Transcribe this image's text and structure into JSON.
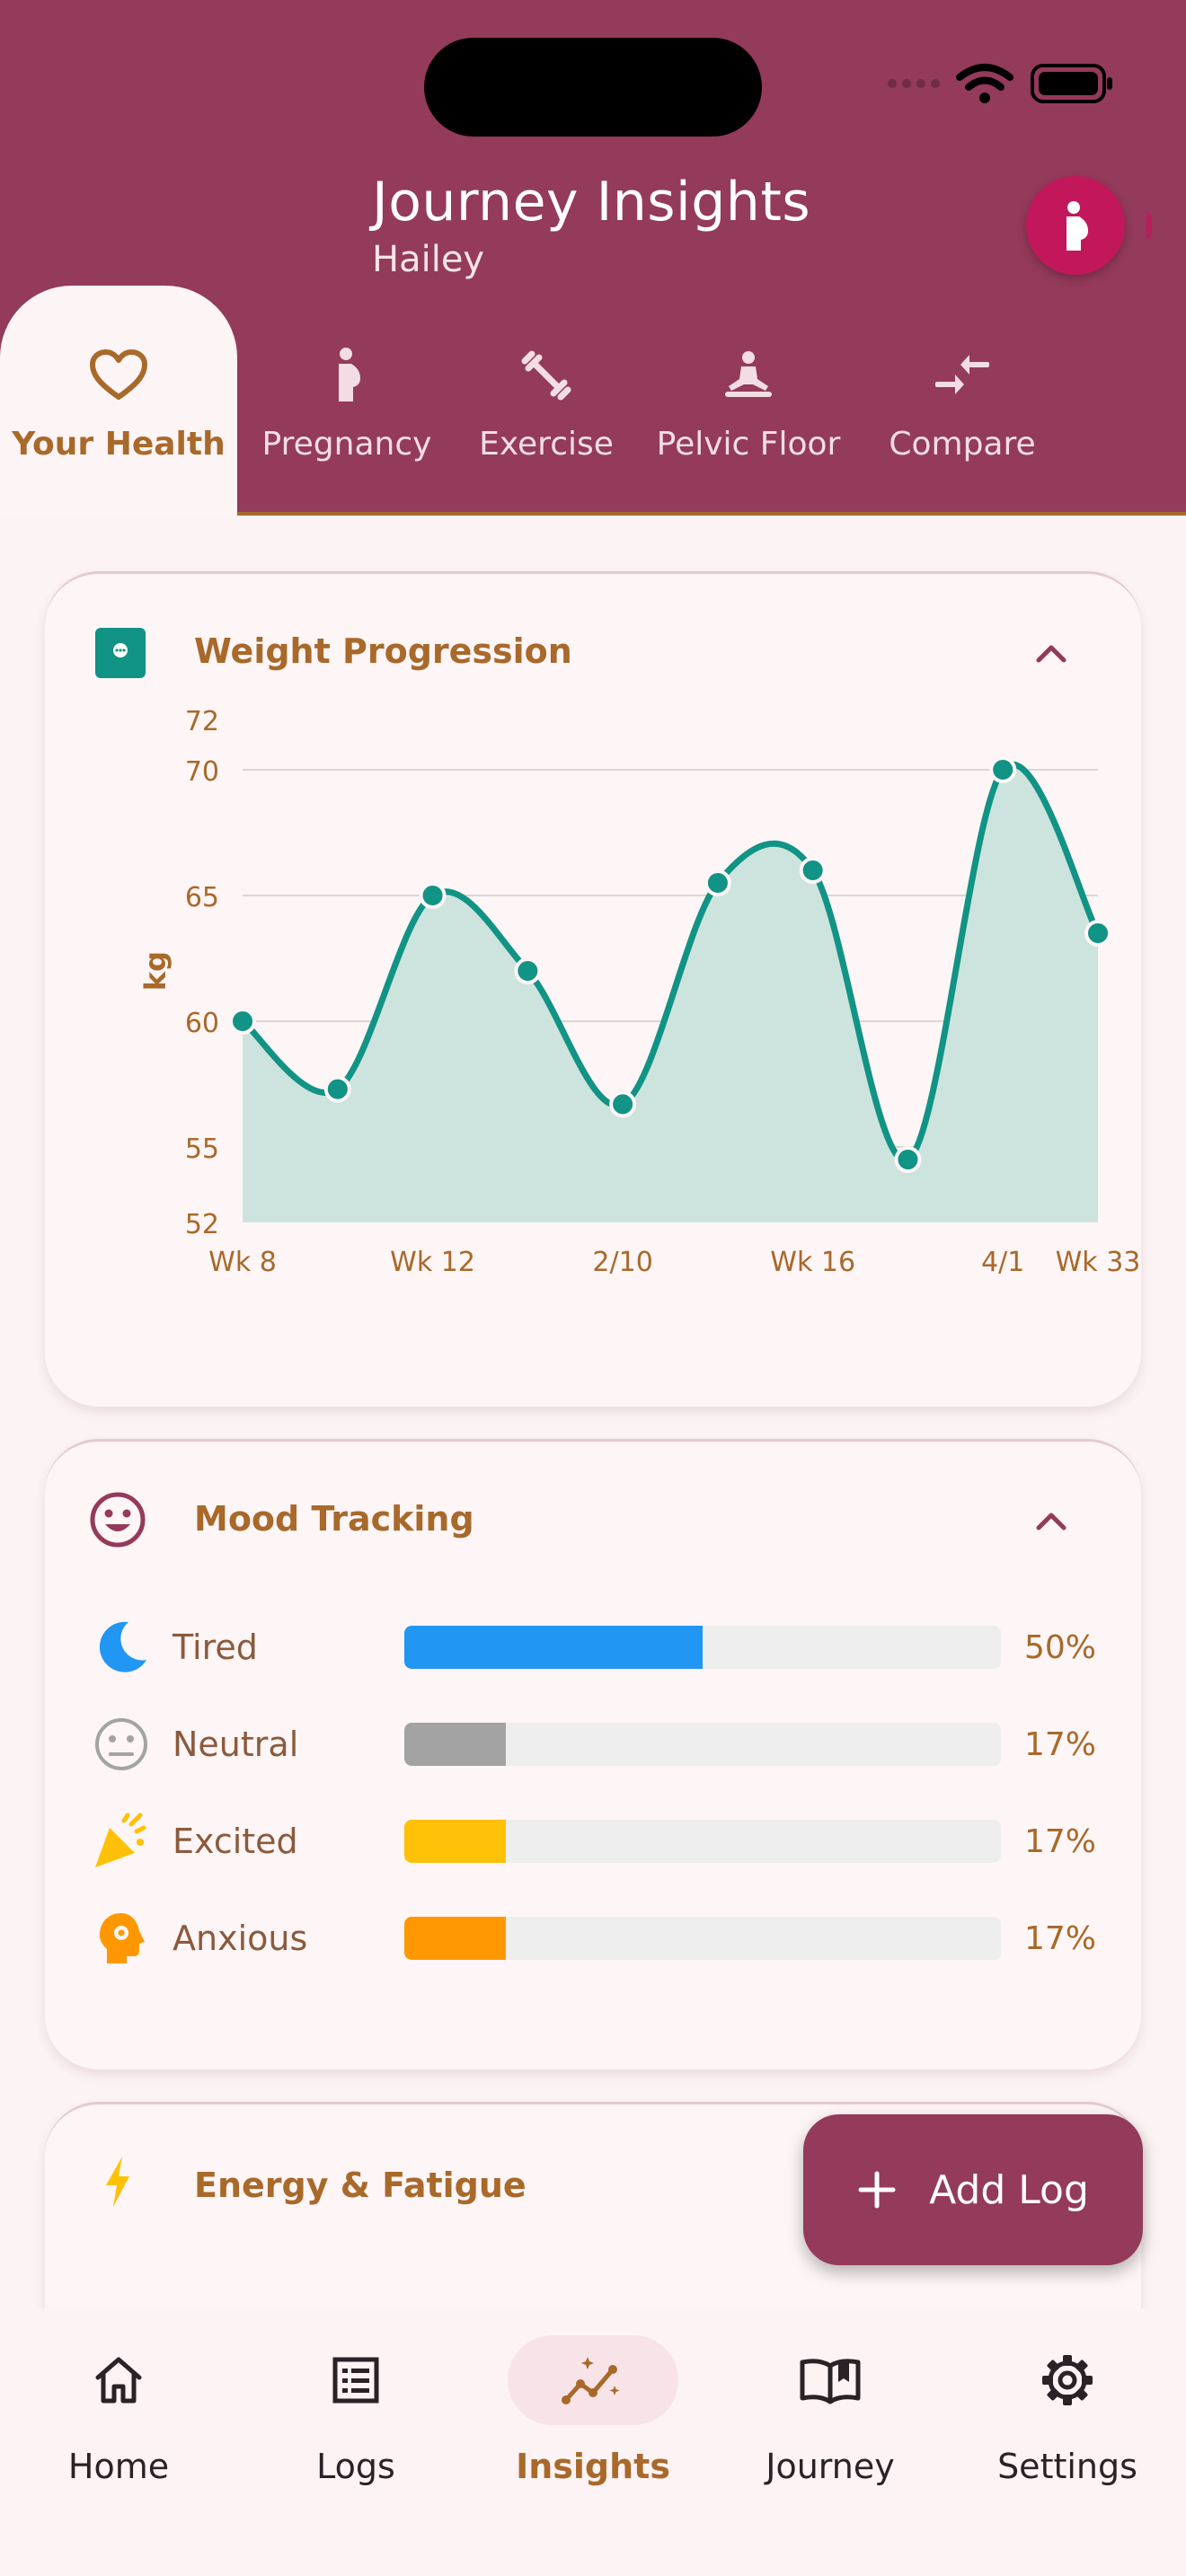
{
  "header": {
    "title": "Journey Insights",
    "subtitle": "Hailey"
  },
  "tabs": [
    {
      "label": "Your Health",
      "icon": "heart-icon",
      "active": true
    },
    {
      "label": "Pregnancy",
      "icon": "pregnant-icon",
      "active": false
    },
    {
      "label": "Exercise",
      "icon": "dumbbell-icon",
      "active": false
    },
    {
      "label": "Pelvic Floor",
      "icon": "meditation-icon",
      "active": false
    },
    {
      "label": "Compare",
      "icon": "compare-icon",
      "active": false
    }
  ],
  "weight_card": {
    "title": "Weight Progression",
    "icon": "scale-icon"
  },
  "chart_data": {
    "type": "area",
    "ylabel": "kg",
    "ylim": [
      52,
      72
    ],
    "yticks": [
      72,
      70,
      65,
      60,
      55,
      52
    ],
    "xtick_labels": [
      "Wk 8",
      "Wk 12",
      "2/10",
      "Wk 16",
      "4/1",
      "Wk 33"
    ],
    "points": [
      60,
      57.3,
      65,
      62,
      56.7,
      65.5,
      66,
      54.5,
      70,
      63.5
    ],
    "color": "#119385",
    "fill": "#cde4de"
  },
  "mood_card": {
    "title": "Mood Tracking",
    "items": [
      {
        "label": "Tired",
        "percent_text": "50%",
        "value": 0.5,
        "color": "#2196f3",
        "icon": "moon-icon"
      },
      {
        "label": "Neutral",
        "percent_text": "17%",
        "value": 0.17,
        "color": "#a3a3a3",
        "icon": "neutral-face-icon"
      },
      {
        "label": "Excited",
        "percent_text": "17%",
        "value": 0.17,
        "color": "#ffc107",
        "icon": "party-popper-icon"
      },
      {
        "label": "Anxious",
        "percent_text": "17%",
        "value": 0.17,
        "color": "#ff9800",
        "icon": "anxious-head-icon"
      }
    ]
  },
  "energy_card": {
    "title": "Energy & Fatigue",
    "icon": "bolt-icon"
  },
  "fab": {
    "label": "Add Log"
  },
  "bottom_nav": [
    {
      "label": "Home",
      "icon": "home-icon",
      "active": false
    },
    {
      "label": "Logs",
      "icon": "list-icon",
      "active": false
    },
    {
      "label": "Insights",
      "icon": "insights-icon",
      "active": true
    },
    {
      "label": "Journey",
      "icon": "book-icon",
      "active": false
    },
    {
      "label": "Settings",
      "icon": "gear-icon",
      "active": false
    }
  ]
}
